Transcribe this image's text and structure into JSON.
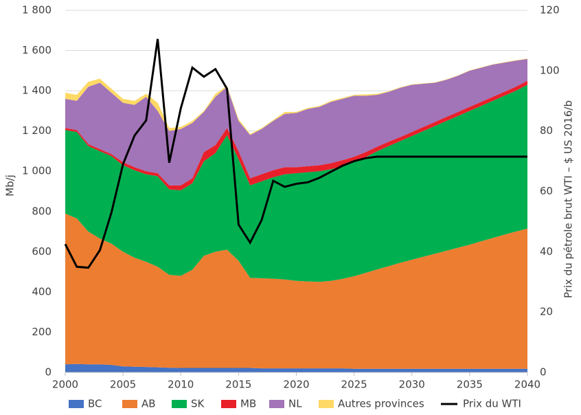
{
  "chart_data": {
    "type": "stacked-area-line",
    "y_label": "Mb/j",
    "y2_label": "Prix du pétrole brut WTI – $ US 2016/b",
    "x": [
      2000,
      2001,
      2002,
      2003,
      2004,
      2005,
      2006,
      2007,
      2008,
      2009,
      2010,
      2011,
      2012,
      2013,
      2014,
      2015,
      2016,
      2017,
      2018,
      2019,
      2020,
      2021,
      2022,
      2023,
      2024,
      2025,
      2026,
      2027,
      2028,
      2029,
      2030,
      2031,
      2032,
      2033,
      2034,
      2035,
      2036,
      2037,
      2038,
      2039,
      2040
    ],
    "xlim": [
      2000,
      2040
    ],
    "xticks": [
      2000,
      2005,
      2010,
      2015,
      2020,
      2025,
      2030,
      2035,
      2040
    ],
    "ylim": [
      0,
      1800
    ],
    "yticks": [
      0,
      200,
      400,
      600,
      800,
      {
        "value": 1000,
        "label": "1 000"
      },
      {
        "value": 1200,
        "label": "1 200"
      },
      {
        "value": 1400,
        "label": "1 400"
      },
      {
        "value": 1600,
        "label": "1 600"
      },
      {
        "value": 1800,
        "label": "1 800"
      }
    ],
    "y2lim": [
      0,
      120
    ],
    "y2ticks": [
      0,
      20,
      40,
      60,
      80,
      100,
      120
    ],
    "grid": true,
    "legend": "bottom",
    "series": [
      {
        "name": "BC",
        "color": "#4472c4",
        "values": [
          40,
          42,
          40,
          40,
          37,
          30,
          28,
          27,
          25,
          23,
          22,
          22,
          22,
          22,
          22,
          22,
          22,
          20,
          20,
          20,
          20,
          20,
          20,
          20,
          20,
          18,
          18,
          18,
          18,
          18,
          18,
          18,
          18,
          18,
          18,
          18,
          18,
          18,
          18,
          18,
          18
        ]
      },
      {
        "name": "AB",
        "color": "#ed7d31",
        "values": [
          750,
          723,
          660,
          625,
          603,
          570,
          542,
          523,
          500,
          462,
          458,
          488,
          558,
          578,
          588,
          533,
          448,
          448,
          446,
          442,
          435,
          432,
          430,
          435,
          445,
          460,
          477,
          494,
          510,
          527,
          542,
          557,
          572,
          587,
          602,
          617,
          634,
          650,
          667,
          682,
          697
        ]
      },
      {
        "name": "SK",
        "color": "#00b050",
        "values": [
          415,
          430,
          425,
          435,
          435,
          430,
          435,
          435,
          450,
          425,
          425,
          430,
          470,
          490,
          570,
          505,
          460,
          482,
          504,
          523,
          535,
          543,
          550,
          555,
          560,
          567,
          575,
          588,
          597,
          605,
          615,
          625,
          635,
          645,
          655,
          665,
          673,
          682,
          690,
          700,
          715
        ]
      },
      {
        "name": "MB",
        "color": "#e8202a",
        "values": [
          10,
          10,
          10,
          10,
          10,
          15,
          15,
          15,
          15,
          20,
          25,
          25,
          45,
          40,
          35,
          40,
          35,
          35,
          35,
          35,
          30,
          30,
          30,
          30,
          30,
          27,
          25,
          22,
          22,
          20,
          20,
          20,
          20,
          20,
          20,
          20,
          20,
          20,
          20,
          20,
          20
        ]
      },
      {
        "name": "NL",
        "color": "#a274b8",
        "values": [
          145,
          145,
          285,
          330,
          305,
          295,
          310,
          370,
          310,
          270,
          280,
          275,
          200,
          240,
          205,
          150,
          215,
          225,
          245,
          265,
          270,
          285,
          290,
          305,
          305,
          303,
          280,
          258,
          248,
          245,
          235,
          215,
          195,
          185,
          180,
          180,
          170,
          160,
          145,
          130,
          108
        ]
      },
      {
        "name": "Autres provinces",
        "color": "#ffd966",
        "values": [
          30,
          30,
          25,
          20,
          20,
          20,
          20,
          15,
          40,
          15,
          10,
          10,
          5,
          15,
          5,
          10,
          5,
          5,
          5,
          10,
          5,
          5,
          5,
          5,
          5,
          5,
          7,
          5,
          3,
          3,
          2,
          2,
          2,
          2,
          2,
          2,
          2,
          2,
          2,
          2,
          2
        ]
      },
      {
        "name": "Prix du WTI",
        "color": "#000000",
        "axis": "y2",
        "values": [
          42.5,
          35,
          34.7,
          40.5,
          53,
          69,
          78.5,
          83.5,
          110.5,
          69.5,
          87.5,
          101,
          98,
          100.5,
          94,
          49,
          43,
          50.5,
          63.5,
          61.5,
          62.5,
          63,
          64.5,
          66.5,
          68.5,
          70,
          71,
          71.5,
          71.5,
          71.5,
          71.5,
          71.5,
          71.5,
          71.5,
          71.5,
          71.5,
          71.5,
          71.5,
          71.5,
          71.5,
          71.5
        ]
      }
    ]
  }
}
